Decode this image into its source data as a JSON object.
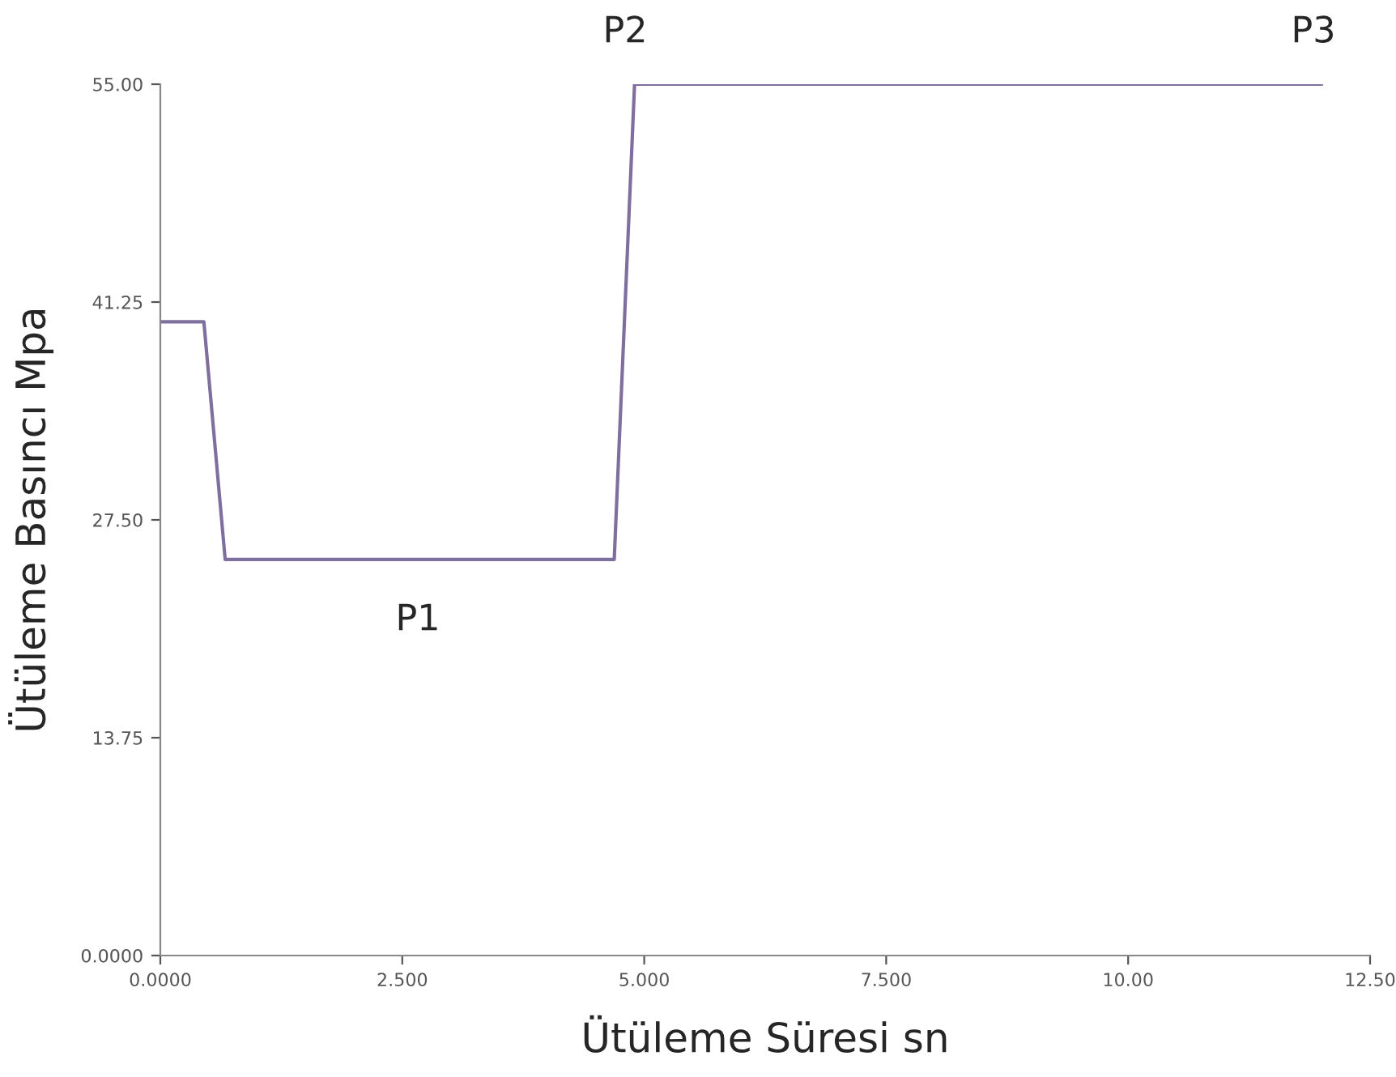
{
  "chart_data": {
    "type": "line",
    "xlabel": "Ütüleme Süresi sn",
    "ylabel": "Ütüleme Basıncı Mpa",
    "x": [
      0,
      0.45,
      0.67,
      4.69,
      4.9,
      12.0
    ],
    "series": [
      {
        "color": "#7f6f9f",
        "values": [
          40,
          40,
          25,
          25,
          55,
          55
        ]
      }
    ],
    "xlim": [
      0,
      12.5
    ],
    "ylim": [
      0,
      55
    ],
    "xticks": [
      {
        "value": 0,
        "label": "0.0000"
      },
      {
        "value": 2.5,
        "label": "2.500"
      },
      {
        "value": 5,
        "label": "5.000"
      },
      {
        "value": 7.5,
        "label": "7.500"
      },
      {
        "value": 10,
        "label": "10.00"
      },
      {
        "value": 12.5,
        "label": "12.50"
      }
    ],
    "yticks": [
      {
        "value": 0,
        "label": "0.0000"
      },
      {
        "value": 13.75,
        "label": "13.75"
      },
      {
        "value": 27.5,
        "label": "27.50"
      },
      {
        "value": 41.25,
        "label": "41.25"
      },
      {
        "value": 55,
        "label": "55.00"
      }
    ],
    "annotations": [
      "P1",
      "P2",
      "P3"
    ],
    "grid": false,
    "marker": "none",
    "line_style": "solid"
  }
}
